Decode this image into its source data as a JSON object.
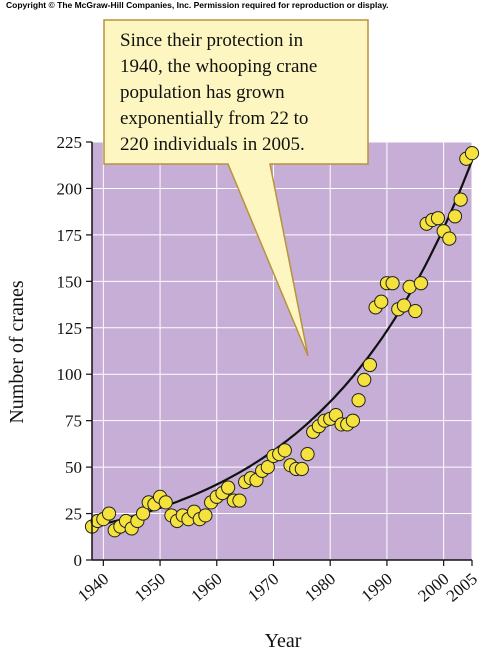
{
  "copyright": "Copyright © The McGraw-Hill Companies, Inc. Permission required for reproduction or display.",
  "callout": {
    "lines": [
      "Since their protection in",
      "1940, the whooping crane",
      "population has grown",
      "exponentially from 22 to",
      "220 individuals in 2005."
    ]
  },
  "colors": {
    "plot_background": "#c6aed6",
    "gridline": "#ffffff",
    "point_fill": "#f5e23c",
    "point_stroke": "#222222",
    "curve": "#111111",
    "callout_fill": "#fdf6c0",
    "callout_stroke": "#b8923c"
  },
  "chart_data": {
    "type": "scatter",
    "title": "",
    "xlabel": "Year",
    "ylabel": "Number of cranes",
    "xlim": [
      1938,
      2005
    ],
    "ylim": [
      0,
      225
    ],
    "x_ticks": [
      1940,
      1950,
      1960,
      1970,
      1980,
      1990,
      2000,
      2005
    ],
    "y_ticks": [
      0,
      25,
      50,
      75,
      100,
      125,
      150,
      175,
      200,
      225
    ],
    "grid": true,
    "fit_curve": {
      "type": "exponential",
      "start": [
        1938,
        18
      ],
      "end": [
        2005,
        215
      ]
    },
    "series": [
      {
        "points": [
          [
            1938,
            18
          ],
          [
            1939,
            21
          ],
          [
            1940,
            22
          ],
          [
            1941,
            25
          ],
          [
            1942,
            16
          ],
          [
            1943,
            18
          ],
          [
            1944,
            21
          ],
          [
            1945,
            17
          ],
          [
            1946,
            21
          ],
          [
            1947,
            25
          ],
          [
            1948,
            31
          ],
          [
            1949,
            30
          ],
          [
            1950,
            34
          ],
          [
            1951,
            31
          ],
          [
            1952,
            24
          ],
          [
            1953,
            21
          ],
          [
            1954,
            24
          ],
          [
            1955,
            22
          ],
          [
            1956,
            26
          ],
          [
            1957,
            22
          ],
          [
            1958,
            24
          ],
          [
            1959,
            31
          ],
          [
            1960,
            34
          ],
          [
            1961,
            36
          ],
          [
            1962,
            39
          ],
          [
            1963,
            32
          ],
          [
            1964,
            32
          ],
          [
            1965,
            42
          ],
          [
            1966,
            44
          ],
          [
            1967,
            43
          ],
          [
            1968,
            48
          ],
          [
            1969,
            50
          ],
          [
            1970,
            56
          ],
          [
            1971,
            57
          ],
          [
            1972,
            59
          ],
          [
            1973,
            51
          ],
          [
            1974,
            49
          ],
          [
            1975,
            49
          ],
          [
            1976,
            57
          ],
          [
            1977,
            69
          ],
          [
            1978,
            72
          ],
          [
            1979,
            75
          ],
          [
            1980,
            76
          ],
          [
            1981,
            78
          ],
          [
            1982,
            73
          ],
          [
            1983,
            73
          ],
          [
            1984,
            75
          ],
          [
            1985,
            86
          ],
          [
            1986,
            97
          ],
          [
            1987,
            105
          ],
          [
            1988,
            136
          ],
          [
            1989,
            139
          ],
          [
            1990,
            149
          ],
          [
            1991,
            149
          ],
          [
            1992,
            135
          ],
          [
            1993,
            137
          ],
          [
            1994,
            147
          ],
          [
            1995,
            134
          ],
          [
            1996,
            149
          ],
          [
            1997,
            181
          ],
          [
            1998,
            183
          ],
          [
            1999,
            184
          ],
          [
            2000,
            177
          ],
          [
            2001,
            173
          ],
          [
            2002,
            185
          ],
          [
            2003,
            194
          ],
          [
            2004,
            216
          ],
          [
            2005,
            219
          ]
        ]
      }
    ]
  }
}
